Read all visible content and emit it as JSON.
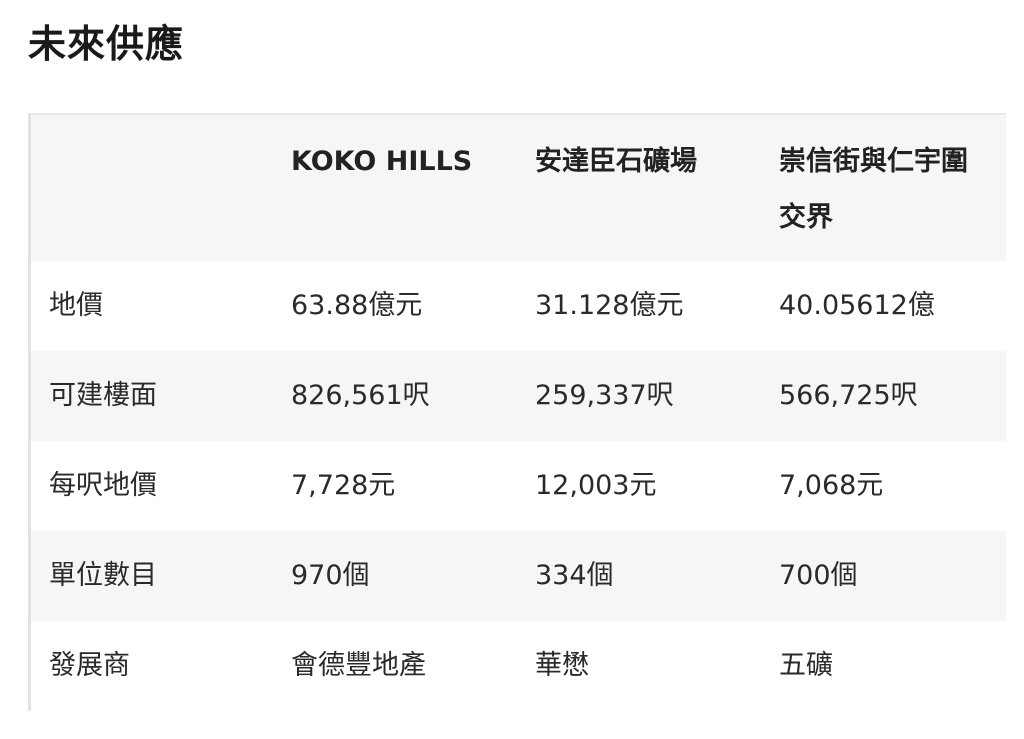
{
  "title": "未來供應",
  "table": {
    "headers": [
      "",
      "KOKO HILLS",
      "安達臣石礦場",
      "崇信街與仁宇圍交界"
    ],
    "rows": [
      [
        "地價",
        "63.88億元",
        "31.128億元",
        "40.05612億"
      ],
      [
        "可建樓面",
        "826,561呎",
        "259,337呎",
        "566,725呎"
      ],
      [
        "每呎地價",
        "7,728元",
        "12,003元",
        "7,068元"
      ],
      [
        "單位數目",
        "970個",
        "334個",
        "700個"
      ],
      [
        "發展商",
        "會德豐地產",
        "華懋",
        "五礦"
      ]
    ]
  }
}
